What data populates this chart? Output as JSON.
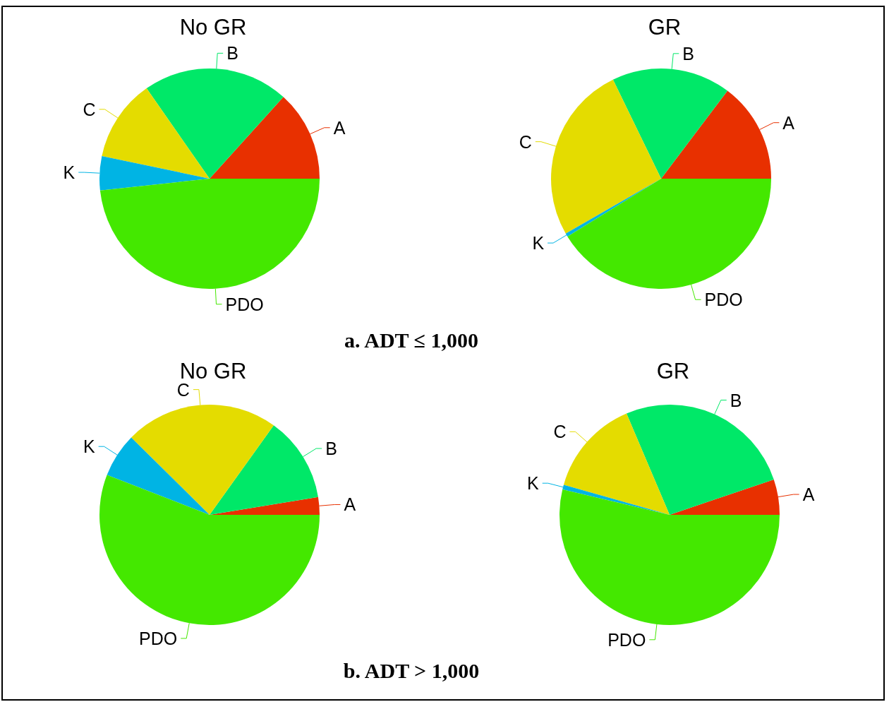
{
  "chart_data": [
    {
      "type": "pie",
      "title": "No GR",
      "categories": [
        "A",
        "B",
        "C",
        "K",
        "PDO"
      ],
      "values": [
        13.3,
        21.4,
        12,
        5,
        48.3
      ],
      "colors": [
        "#e83000",
        "#00e868",
        "#e4dc00",
        "#00b4e4",
        "#44e800"
      ],
      "annotations": [
        "a. ADT ≤ 1,000"
      ]
    },
    {
      "type": "pie",
      "title": "GR",
      "categories": [
        "A",
        "B",
        "C",
        "K",
        "PDO"
      ],
      "values": [
        14.7,
        17.5,
        26.1,
        0.5,
        41.2
      ],
      "colors": [
        "#e83000",
        "#00e868",
        "#e4dc00",
        "#00b4e4",
        "#44e800"
      ]
    },
    {
      "type": "pie",
      "title": "No GR",
      "categories": [
        "A",
        "B",
        "C",
        "K",
        "PDO"
      ],
      "values": [
        2.6,
        12.5,
        22.5,
        6.5,
        55.9
      ],
      "colors": [
        "#e83000",
        "#00e868",
        "#e4dc00",
        "#00b4e4",
        "#44e800"
      ],
      "annotations": [
        "b. ADT > 1,000"
      ]
    },
    {
      "type": "pie",
      "title": "GR",
      "categories": [
        "A",
        "B",
        "C",
        "K",
        "PDO"
      ],
      "values": [
        5.2,
        26.2,
        14.2,
        0.7,
        53.7
      ],
      "colors": [
        "#e83000",
        "#00e868",
        "#e4dc00",
        "#00b4e4",
        "#44e800"
      ]
    }
  ]
}
